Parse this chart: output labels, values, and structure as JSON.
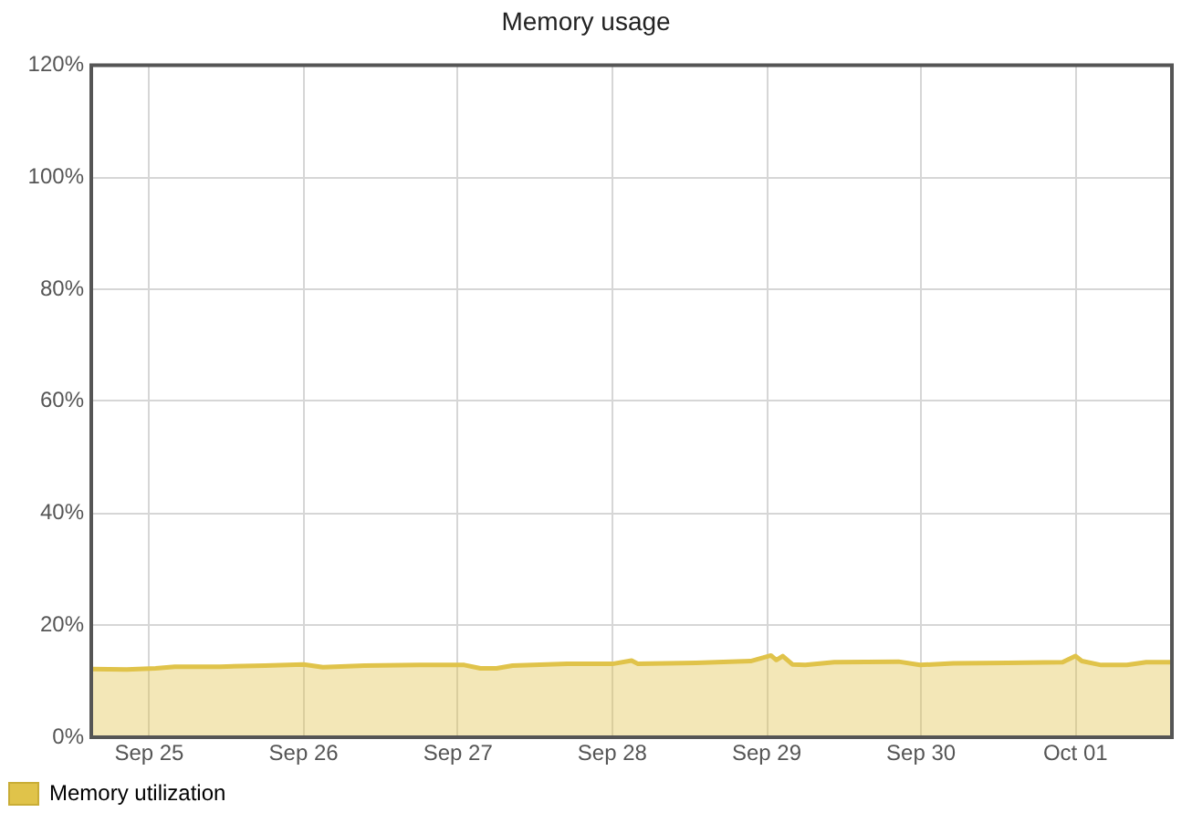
{
  "chart_data": {
    "type": "area",
    "title": "Memory usage",
    "x": [
      "--09-24T15:00",
      "--09-24T20:30",
      "--09-25T01:00",
      "--09-25T04:00",
      "--09-25T11:00",
      "--09-25T18:00",
      "--09-26T00:00",
      "--09-26T03:00",
      "--09-26T09:30",
      "--09-26T18:00",
      "--09-27T01:00",
      "--09-27T03:30",
      "--09-27T06:00",
      "--09-27T08:30",
      "--09-27T17:00",
      "--09-28T00:00",
      "--09-28T03:00",
      "--09-28T04:00",
      "--09-28T13:00",
      "--09-28T21:30",
      "--09-29T00:40",
      "--09-29T01:30",
      "--09-29T02:30",
      "--09-29T04:00",
      "--09-29T06:00",
      "--09-29T10:30",
      "--09-29T20:30",
      "--09-29T23:50",
      "--09-30T05:00",
      "--09-30T13:30",
      "--09-30T22:00",
      "--10-01T00:00",
      "--10-01T01:00",
      "--10-01T04:00",
      "--10-01T08:00",
      "--10-01T11:00",
      "--10-01T15:00"
    ],
    "series": [
      {
        "name": "Memory utilization",
        "color": "#e0c34a",
        "values": [
          12.2,
          12.1,
          12.3,
          12.6,
          12.6,
          12.8,
          13.0,
          12.5,
          12.8,
          12.9,
          12.9,
          12.3,
          12.3,
          12.8,
          13.1,
          13.1,
          13.7,
          13.1,
          13.3,
          13.6,
          14.6,
          13.8,
          14.5,
          13.0,
          12.9,
          13.4,
          13.5,
          12.9,
          13.2,
          13.3,
          13.4,
          14.5,
          13.6,
          12.9,
          12.9,
          13.4,
          13.4
        ]
      }
    ],
    "xlim": [
      "--09-24T15:00",
      "--10-01T15:00"
    ],
    "xticks": [
      {
        "value": "--09-25",
        "label": "Sep 25"
      },
      {
        "value": "--09-26",
        "label": "Sep 26"
      },
      {
        "value": "--09-27",
        "label": "Sep 27"
      },
      {
        "value": "--09-28",
        "label": "Sep 28"
      },
      {
        "value": "--09-29",
        "label": "Sep 29"
      },
      {
        "value": "--09-30",
        "label": "Sep 30"
      },
      {
        "value": "--10-01",
        "label": "Oct 01"
      }
    ],
    "ylim": [
      0,
      120
    ],
    "yticks": [
      {
        "value": 0,
        "label": "0%"
      },
      {
        "value": 20,
        "label": "20%"
      },
      {
        "value": 40,
        "label": "40%"
      },
      {
        "value": 60,
        "label": "60%"
      },
      {
        "value": 80,
        "label": "80%"
      },
      {
        "value": 100,
        "label": "100%"
      },
      {
        "value": 120,
        "label": "120%"
      }
    ],
    "grid": true,
    "legend": "bottom left",
    "marker": "none"
  }
}
